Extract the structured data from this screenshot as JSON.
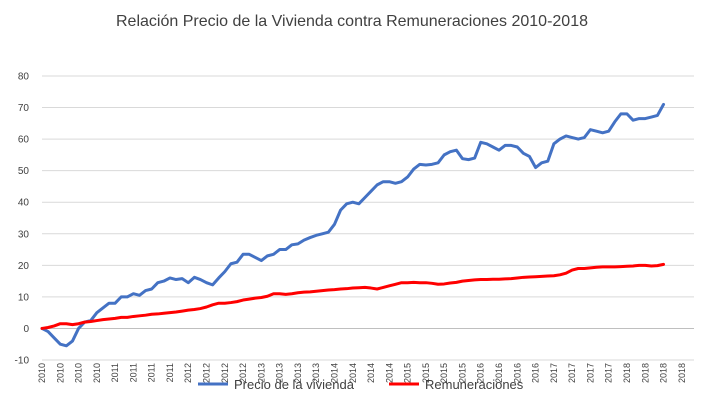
{
  "chart_data": {
    "type": "line",
    "title": "Relación  Precio de la Vivienda  contra  Remuneraciones  2010-2018",
    "xlabel": "",
    "ylabel": "",
    "ylim": [
      -10,
      80
    ],
    "yticks": [
      -10,
      0,
      10,
      20,
      30,
      40,
      50,
      60,
      70,
      80
    ],
    "grid": "horizontal",
    "legend": "bottom",
    "categories": [
      "2010",
      "2010",
      "2010",
      "2010",
      "2010",
      "2010",
      "2010",
      "2010",
      "2010",
      "2010",
      "2010",
      "2010",
      "2011",
      "2011",
      "2011",
      "2011",
      "2011",
      "2011",
      "2011",
      "2011",
      "2011",
      "2011",
      "2011",
      "2011",
      "2012",
      "2012",
      "2012",
      "2012",
      "2012",
      "2012",
      "2012",
      "2012",
      "2012",
      "2012",
      "2012",
      "2012",
      "2013",
      "2013",
      "2013",
      "2013",
      "2013",
      "2013",
      "2013",
      "2013",
      "2013",
      "2013",
      "2013",
      "2013",
      "2014",
      "2014",
      "2014",
      "2014",
      "2014",
      "2014",
      "2014",
      "2014",
      "2014",
      "2014",
      "2014",
      "2014",
      "2015",
      "2015",
      "2015",
      "2015",
      "2015",
      "2015",
      "2015",
      "2015",
      "2015",
      "2015",
      "2015",
      "2015",
      "2016",
      "2016",
      "2016",
      "2016",
      "2016",
      "2016",
      "2016",
      "2016",
      "2016",
      "2016",
      "2016",
      "2016",
      "2017",
      "2017",
      "2017",
      "2017",
      "2017",
      "2017",
      "2017",
      "2017",
      "2017",
      "2017",
      "2017",
      "2017",
      "2018",
      "2018",
      "2018",
      "2018",
      "2018",
      "2018",
      "2018",
      "2018",
      "2018",
      "2018",
      "2018",
      "2018"
    ],
    "series": [
      {
        "name": "Precio de la vivienda",
        "color": "#4472C4",
        "values": [
          0,
          -1,
          -3,
          -5,
          -5.5,
          -4,
          0,
          2,
          2.5,
          5,
          6.5,
          8,
          8,
          10,
          10,
          11,
          10.5,
          12,
          12.5,
          14.5,
          15,
          16,
          15.5,
          15.8,
          14.5,
          16.2,
          15.5,
          14.5,
          13.8,
          16,
          18,
          20.5,
          21,
          23.5,
          23.5,
          22.5,
          21.5,
          23,
          23.5,
          25,
          25,
          26.5,
          26.8,
          28,
          28.8,
          29.5,
          30,
          30.5,
          33,
          37.5,
          39.5,
          40,
          39.5,
          41.5,
          43.5,
          45.5,
          46.5,
          46.5,
          46,
          46.5,
          48,
          50.5,
          52,
          51.8,
          52,
          52.5,
          55,
          56,
          56.5,
          53.8,
          53.5,
          54,
          59,
          58.5,
          57.5,
          56.5,
          58,
          58,
          57.5,
          55.5,
          54.5,
          51,
          52.5,
          53,
          58.5,
          60,
          61,
          60.5,
          60,
          60.5,
          63,
          62.5,
          62,
          62.5,
          65.5,
          68,
          68,
          66,
          66.5,
          66.5,
          67,
          67.5,
          71,
          null,
          null,
          null,
          null,
          null
        ]
      },
      {
        "name": "Remuneraciones",
        "color": "#FF0000",
        "values": [
          0,
          0.3,
          0.8,
          1.5,
          1.5,
          1.2,
          1.5,
          2,
          2.2,
          2.5,
          2.8,
          3,
          3.2,
          3.5,
          3.5,
          3.8,
          4,
          4.2,
          4.5,
          4.6,
          4.8,
          5,
          5.2,
          5.5,
          5.8,
          6,
          6.3,
          6.8,
          7.5,
          8,
          8,
          8.2,
          8.5,
          9,
          9.3,
          9.6,
          9.8,
          10.2,
          11,
          11,
          10.8,
          11,
          11.3,
          11.5,
          11.6,
          11.8,
          12,
          12.2,
          12.3,
          12.5,
          12.6,
          12.8,
          12.9,
          13,
          12.8,
          12.5,
          13,
          13.5,
          14,
          14.5,
          14.5,
          14.6,
          14.5,
          14.5,
          14.3,
          14,
          14.1,
          14.4,
          14.6,
          15,
          15.2,
          15.4,
          15.5,
          15.5,
          15.6,
          15.6,
          15.7,
          15.8,
          16,
          16.2,
          16.3,
          16.4,
          16.5,
          16.6,
          16.7,
          17,
          17.5,
          18.5,
          19,
          19,
          19.2,
          19.4,
          19.5,
          19.5,
          19.5,
          19.6,
          19.7,
          19.8,
          20,
          20,
          19.8,
          19.9,
          20.3,
          null,
          null,
          null,
          null,
          null
        ]
      }
    ]
  }
}
